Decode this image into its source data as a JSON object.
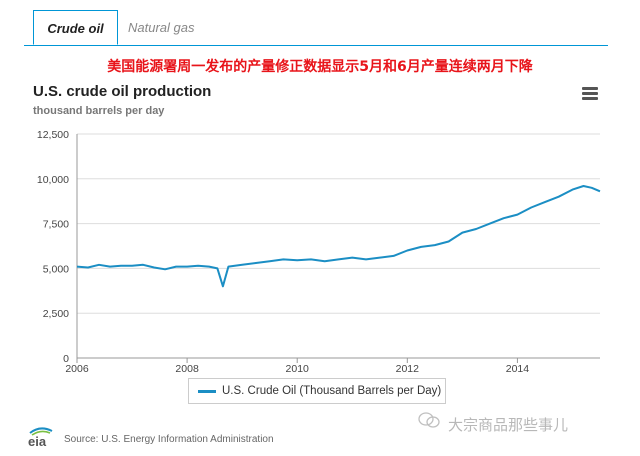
{
  "tabs": [
    {
      "label": "Crude oil",
      "active": true
    },
    {
      "label": "Natural gas",
      "active": false
    }
  ],
  "headline": "美国能源署周一发布的产量修正数据显示5月和6月产量连续两月下降",
  "menu_icon": "hamburger-menu-icon",
  "source": "Source: U.S. Energy Information Administration",
  "watermark": "大宗商品那些事儿",
  "colors": {
    "accent": "#0096d6",
    "series": "#1b8ec4",
    "headline": "#e8141a"
  },
  "chart_data": {
    "type": "line",
    "title": "U.S. crude oil production",
    "subtitle": "thousand barrels per day",
    "xlabel": "",
    "ylabel": "",
    "x_ticks": [
      2006,
      2008,
      2010,
      2012,
      2014
    ],
    "y_ticks": [
      0,
      2500,
      5000,
      7500,
      10000,
      12500
    ],
    "y_tick_labels": [
      "0",
      "2,500",
      "5,000",
      "7,500",
      "10,000",
      "12,500"
    ],
    "xlim": [
      2006,
      2015.5
    ],
    "ylim": [
      0,
      12500
    ],
    "grid": true,
    "legend_position": "bottom-center",
    "series": [
      {
        "name": "U.S. Crude Oil (Thousand Barrels per Day)",
        "x": [
          2006.0,
          2006.2,
          2006.4,
          2006.6,
          2006.8,
          2007.0,
          2007.2,
          2007.4,
          2007.6,
          2007.8,
          2008.0,
          2008.2,
          2008.4,
          2008.55,
          2008.65,
          2008.75,
          2009.0,
          2009.25,
          2009.5,
          2009.75,
          2010.0,
          2010.25,
          2010.5,
          2010.75,
          2011.0,
          2011.25,
          2011.5,
          2011.75,
          2012.0,
          2012.25,
          2012.5,
          2012.75,
          2013.0,
          2013.25,
          2013.5,
          2013.75,
          2014.0,
          2014.25,
          2014.5,
          2014.75,
          2015.0,
          2015.2,
          2015.35,
          2015.5
        ],
        "values": [
          5100,
          5050,
          5200,
          5100,
          5150,
          5150,
          5200,
          5050,
          4950,
          5100,
          5100,
          5150,
          5100,
          5000,
          4000,
          5100,
          5200,
          5300,
          5400,
          5500,
          5450,
          5500,
          5400,
          5500,
          5600,
          5500,
          5600,
          5700,
          6000,
          6200,
          6300,
          6500,
          7000,
          7200,
          7500,
          7800,
          8000,
          8400,
          8700,
          9000,
          9400,
          9600,
          9500,
          9300
        ]
      }
    ]
  }
}
